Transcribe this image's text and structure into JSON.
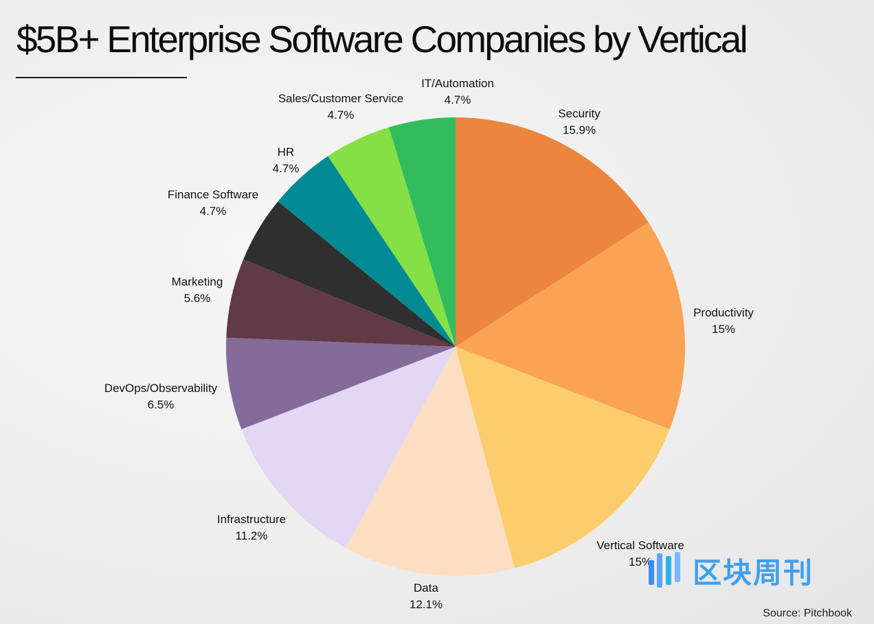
{
  "title": "$5B+ Enterprise Software Companies by Vertical",
  "source": "Source: Pitchbook",
  "watermark": {
    "text": "区块周刊",
    "color": "#3fa0f0"
  },
  "chart_data": {
    "type": "pie",
    "title": "$5B+ Enterprise Software Companies by Vertical",
    "start_angle": "12 o'clock",
    "direction": "clockwise",
    "slices": [
      {
        "label": "Security",
        "value": 15.9,
        "value_label": "15.9%",
        "color": "#ec853e"
      },
      {
        "label": "Productivity",
        "value": 15,
        "value_label": "15%",
        "color": "#fba354"
      },
      {
        "label": "Vertical Software",
        "value": 15,
        "value_label": "15%",
        "color": "#fdcd6d"
      },
      {
        "label": "Data",
        "value": 12.1,
        "value_label": "12.1%",
        "color": "#fcdfc3"
      },
      {
        "label": "Infrastructure",
        "value": 11.2,
        "value_label": "11.2%",
        "color": "#e3d7f3"
      },
      {
        "label": "DevOps/Observability",
        "value": 6.5,
        "value_label": "6.5%",
        "color": "#846b9a"
      },
      {
        "label": "Marketing",
        "value": 5.6,
        "value_label": "5.6%",
        "color": "#603a46"
      },
      {
        "label": "Finance Software",
        "value": 4.7,
        "value_label": "4.7%",
        "color": "#2f2f2f"
      },
      {
        "label": "HR",
        "value": 4.7,
        "value_label": "4.7%",
        "color": "#028a94"
      },
      {
        "label": "Sales/Customer Service",
        "value": 4.7,
        "value_label": "4.7%",
        "color": "#84e045"
      },
      {
        "label": "IT/Automation",
        "value": 4.7,
        "value_label": "4.7%",
        "color": "#33bc5e"
      }
    ]
  }
}
